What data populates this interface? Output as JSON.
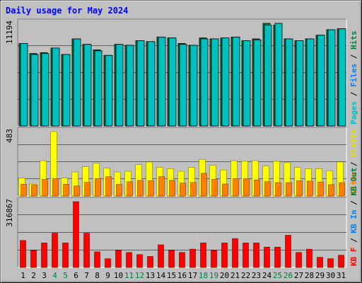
{
  "title": "Daily usage for May 2024",
  "colors": {
    "background": "#c0c0c0",
    "title": "#0000ff",
    "pages": "#00c0c0",
    "files": "#00a0ff",
    "hits": "#008040",
    "visits": "#ffff00",
    "sites": "#ff8000",
    "kb_in": "#0080ff",
    "kb_out": "#008040",
    "kb_f": "#ff0000",
    "weekend_day": "#00803f",
    "weekday": "#000000"
  },
  "chart_data": [
    {
      "type": "bar",
      "panel": "hits-files-pages",
      "ylabel_max": "11194",
      "ymax": 11194,
      "legend": [
        {
          "text": "Pages",
          "color": "#00c0c0"
        },
        {
          "text": "Files",
          "color": "#0080ff"
        },
        {
          "text": "Hits",
          "color": "#008040"
        }
      ],
      "categories": [
        "1",
        "2",
        "3",
        "4",
        "5",
        "6",
        "7",
        "8",
        "9",
        "10",
        "11",
        "12",
        "13",
        "14",
        "15",
        "16",
        "17",
        "18",
        "19",
        "20",
        "21",
        "22",
        "23",
        "24",
        "25",
        "26",
        "27",
        "28",
        "29",
        "30",
        "31"
      ],
      "series": [
        {
          "name": "Hits",
          "values": [
            9000,
            7900,
            8000,
            8500,
            7800,
            9500,
            8900,
            8300,
            7700,
            8900,
            8800,
            9300,
            9200,
            9700,
            9600,
            9000,
            8800,
            9600,
            9500,
            9600,
            9700,
            9300,
            9500,
            11194,
            11000,
            9500,
            9300,
            9500,
            9900,
            10500,
            10600
          ]
        },
        {
          "name": "Files",
          "values": [
            9000,
            7800,
            7900,
            8500,
            7800,
            9500,
            8900,
            8200,
            7700,
            8900,
            8800,
            9300,
            9200,
            9700,
            9600,
            8900,
            8800,
            9500,
            9500,
            9600,
            9700,
            9300,
            9400,
            11000,
            11200,
            9500,
            9300,
            9500,
            9900,
            10500,
            10600
          ]
        }
      ]
    },
    {
      "type": "bar",
      "panel": "visits-sites",
      "ylabel_max": "483",
      "ymax": 483,
      "legend": [
        {
          "text": "Sites",
          "color": "#ff8000"
        },
        {
          "text": "Visits",
          "color": "#e0e000"
        }
      ],
      "categories": [
        "1",
        "2",
        "3",
        "4",
        "5",
        "6",
        "7",
        "8",
        "9",
        "10",
        "11",
        "12",
        "13",
        "14",
        "15",
        "16",
        "17",
        "18",
        "19",
        "20",
        "21",
        "22",
        "23",
        "24",
        "25",
        "26",
        "27",
        "28",
        "29",
        "30",
        "31"
      ],
      "series": [
        {
          "name": "Visits",
          "values": [
            135,
            90,
            265,
            483,
            135,
            180,
            220,
            245,
            210,
            180,
            185,
            235,
            255,
            215,
            205,
            185,
            215,
            275,
            230,
            195,
            265,
            260,
            265,
            225,
            260,
            250,
            215,
            205,
            205,
            190,
            255
          ]
        },
        {
          "name": "Sites",
          "values": [
            88,
            82,
            125,
            130,
            88,
            75,
            102,
            130,
            145,
            87,
            107,
            117,
            115,
            145,
            117,
            97,
            102,
            170,
            125,
            90,
            130,
            130,
            120,
            107,
            100,
            100,
            115,
            112,
            105,
            85,
            100
          ]
        }
      ]
    },
    {
      "type": "bar",
      "panel": "kb",
      "ylabel_max": "316867",
      "ymax": 316867,
      "legend": [
        {
          "text": "KB F",
          "color": "#ff0000"
        },
        {
          "text": "KB In",
          "color": "#0080ff"
        },
        {
          "text": "KB Out",
          "color": "#008040"
        }
      ],
      "categories": [
        "1",
        "2",
        "3",
        "4",
        "5",
        "6",
        "7",
        "8",
        "9",
        "10",
        "11",
        "12",
        "13",
        "14",
        "15",
        "16",
        "17",
        "18",
        "19",
        "20",
        "21",
        "22",
        "23",
        "24",
        "25",
        "26",
        "27",
        "28",
        "29",
        "30",
        "31"
      ],
      "series": [
        {
          "name": "KB F",
          "values": [
            130000,
            82000,
            118000,
            165000,
            118000,
            316867,
            165000,
            75000,
            42000,
            82000,
            72000,
            62000,
            53000,
            109000,
            82000,
            72000,
            88000,
            118000,
            82000,
            118000,
            139000,
            118000,
            118000,
            98000,
            98000,
            155000,
            72000,
            88000,
            49000,
            42000,
            59000
          ]
        }
      ]
    }
  ],
  "x_axis": {
    "labels": [
      "1",
      "2",
      "3",
      "4",
      "5",
      "6",
      "7",
      "8",
      "9",
      "10",
      "11",
      "12",
      "13",
      "14",
      "15",
      "16",
      "17",
      "18",
      "19",
      "20",
      "21",
      "22",
      "23",
      "24",
      "25",
      "26",
      "27",
      "28",
      "29",
      "30",
      "31"
    ],
    "weekend": [
      4,
      5,
      11,
      12,
      18,
      19,
      25,
      26
    ]
  }
}
